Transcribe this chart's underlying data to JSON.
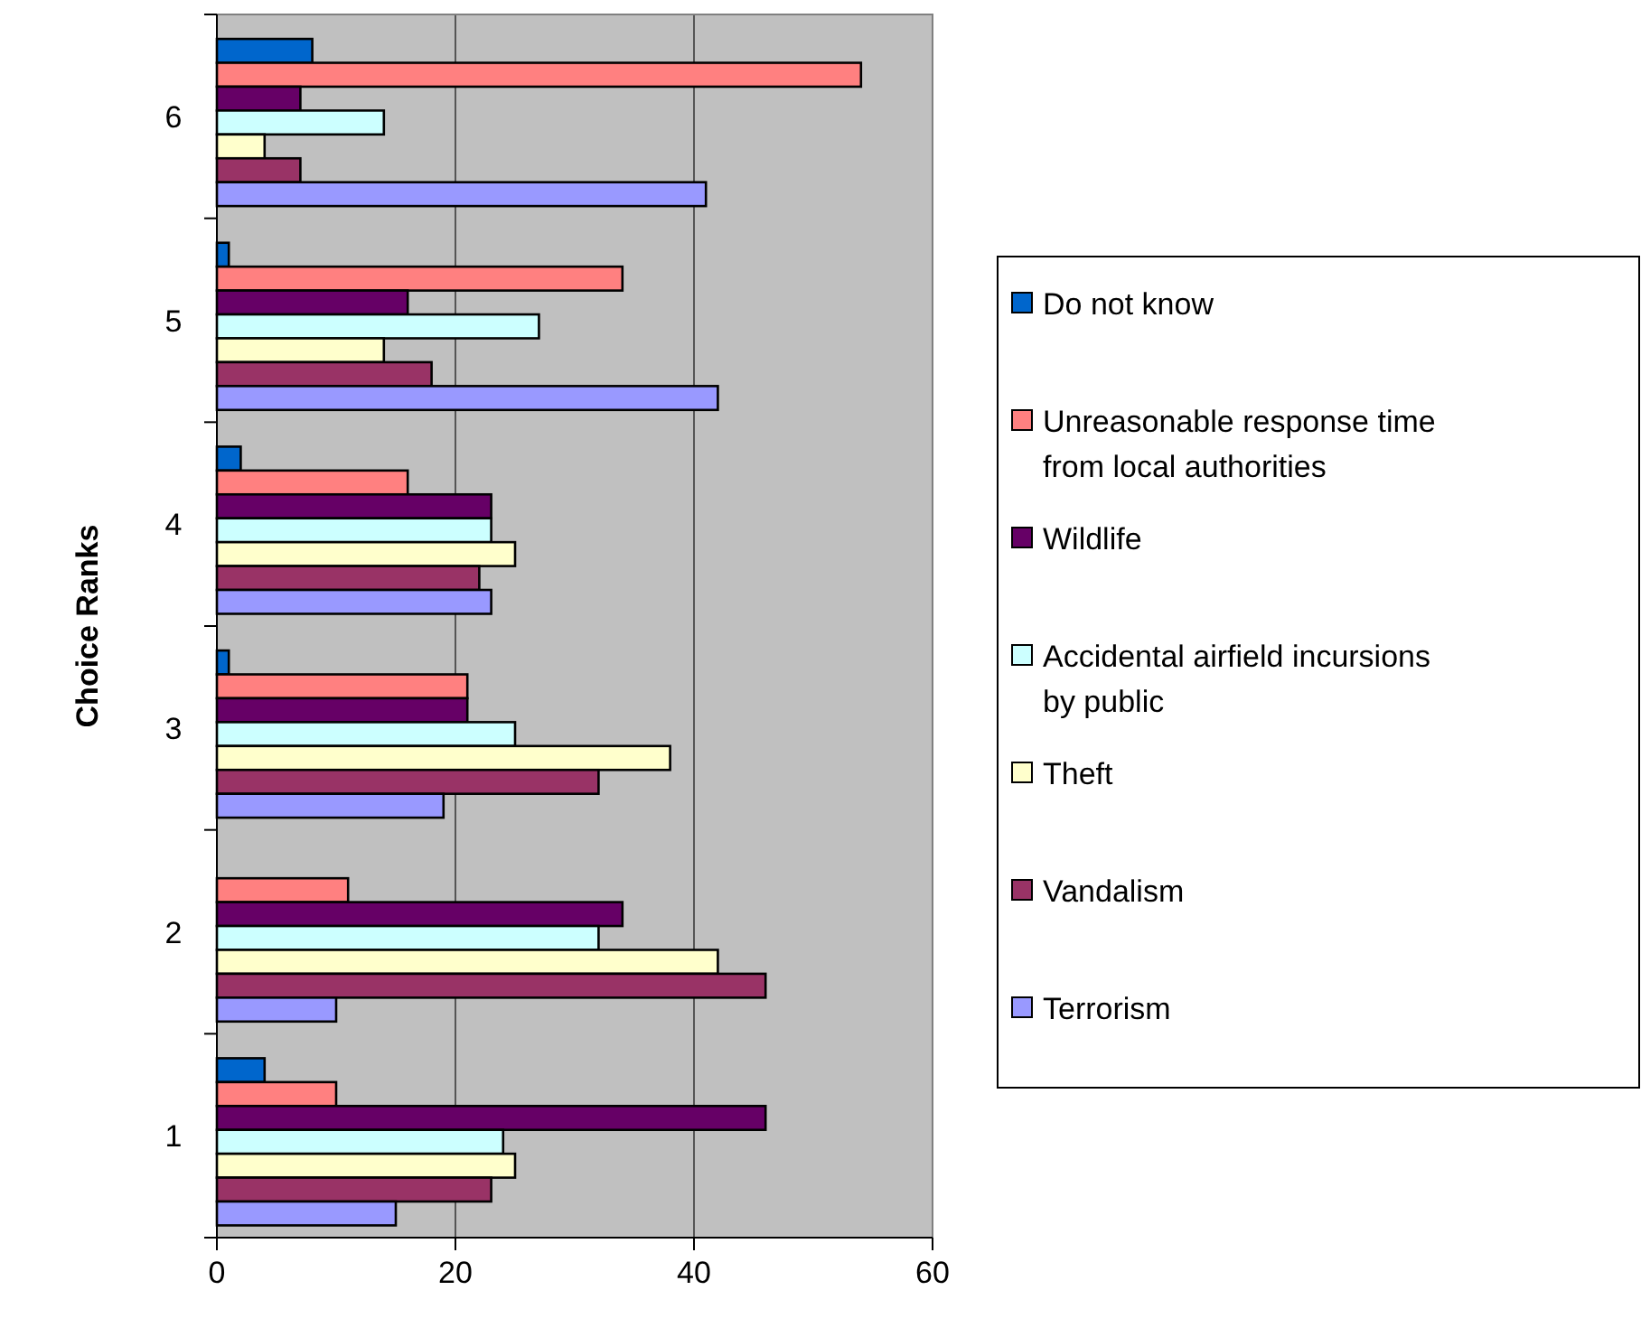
{
  "chart_data": {
    "type": "bar",
    "orientation": "horizontal",
    "ylabel": "Choice Ranks",
    "categories": [
      "6",
      "5",
      "4",
      "3",
      "2",
      "1"
    ],
    "xlim": [
      0,
      60
    ],
    "xticks": [
      0,
      20,
      40,
      60
    ],
    "grid": "x",
    "legend": "right",
    "series": [
      {
        "name": "Do not know",
        "color": "#0066cc",
        "values": [
          8,
          1,
          2,
          1,
          0,
          4
        ]
      },
      {
        "name": "Unreasonable response time from local authorities",
        "color": "#ff8080",
        "values": [
          54,
          34,
          16,
          21,
          11,
          10
        ]
      },
      {
        "name": "Wildlife",
        "color": "#660066",
        "values": [
          7,
          16,
          23,
          21,
          34,
          46
        ]
      },
      {
        "name": "Accidental airfield incursions by public",
        "color": "#ccffff",
        "values": [
          14,
          27,
          23,
          25,
          32,
          24
        ]
      },
      {
        "name": "Theft",
        "color": "#ffffcc",
        "values": [
          4,
          14,
          25,
          38,
          42,
          25
        ]
      },
      {
        "name": "Vandalism",
        "color": "#993366",
        "values": [
          7,
          18,
          22,
          32,
          46,
          23
        ]
      },
      {
        "name": "Terrorism",
        "color": "#9999ff",
        "values": [
          41,
          42,
          23,
          19,
          10,
          15
        ]
      }
    ]
  }
}
